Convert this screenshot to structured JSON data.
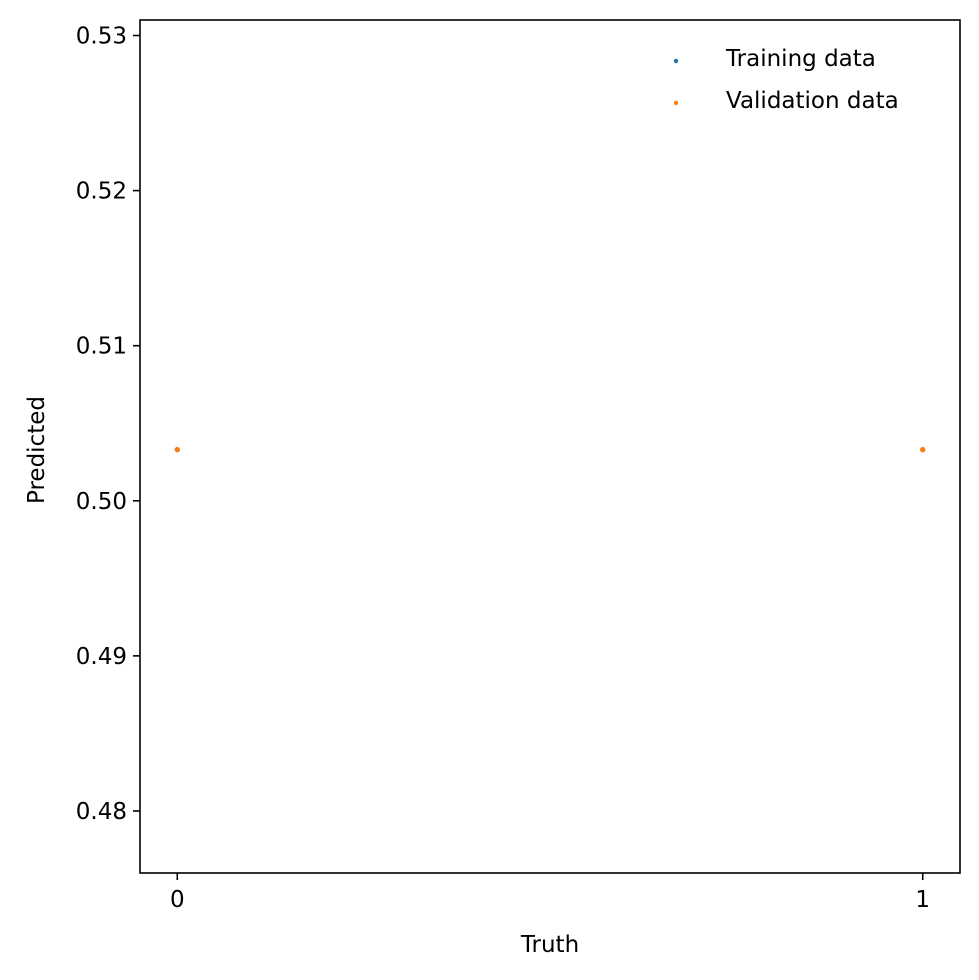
{
  "chart_data": {
    "type": "scatter",
    "title": "",
    "xlabel": "Truth",
    "ylabel": "Predicted",
    "xlim": [
      -0.05,
      1.05
    ],
    "ylim": [
      0.476,
      0.531
    ],
    "xticks": [
      0,
      1
    ],
    "xtick_labels": [
      "0",
      "1"
    ],
    "yticks": [
      0.48,
      0.49,
      0.5,
      0.51,
      0.52,
      0.53
    ],
    "ytick_labels": [
      "0.48",
      "0.49",
      "0.50",
      "0.51",
      "0.52",
      "0.53"
    ],
    "grid": false,
    "legend_position": "top-right",
    "series": [
      {
        "name": "Training data",
        "color": "#1f77b4",
        "points": [
          [
            0,
            0.5033
          ],
          [
            1,
            0.5033
          ]
        ]
      },
      {
        "name": "Validation data",
        "color": "#ff7f0e",
        "points": [
          [
            0,
            0.5033
          ],
          [
            1,
            0.5033
          ]
        ]
      }
    ]
  }
}
